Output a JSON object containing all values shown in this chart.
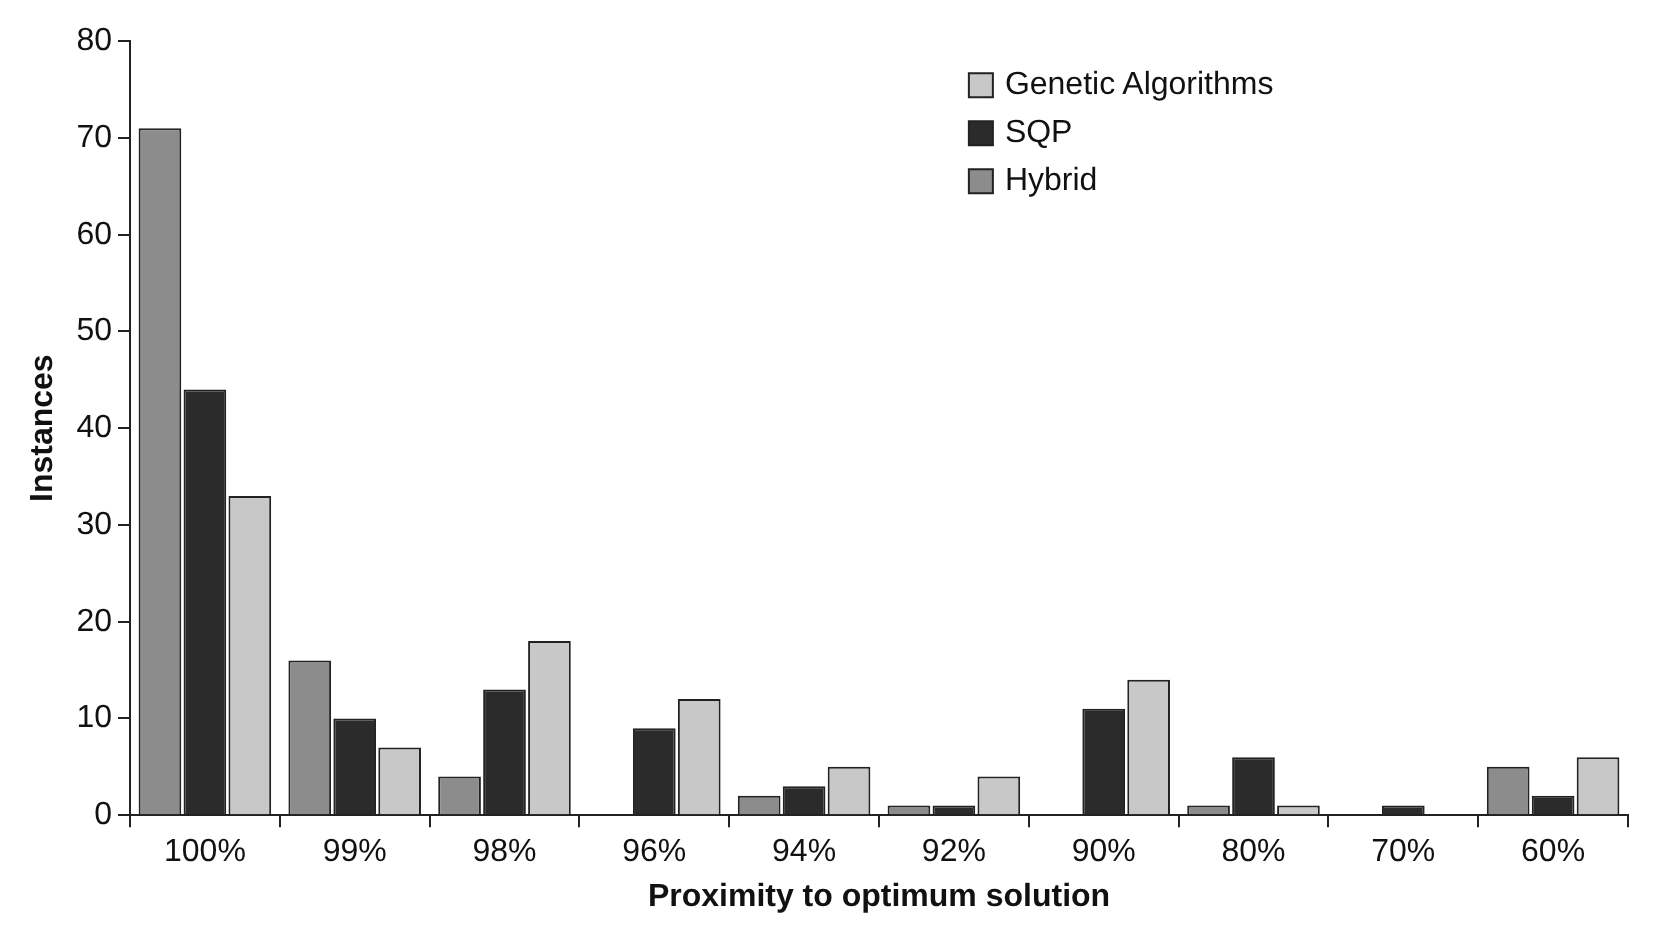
{
  "chart_data": {
    "type": "bar",
    "xlabel": "Proximity to optimum solution",
    "ylabel": "Instances",
    "categories": [
      "100%",
      "99%",
      "98%",
      "96%",
      "94%",
      "92%",
      "90%",
      "80%",
      "70%",
      "60%"
    ],
    "series": [
      {
        "name": "Hybrid",
        "color": "#8c8c8c",
        "values": [
          71,
          16,
          4,
          0,
          2,
          1,
          0,
          1,
          0,
          5
        ]
      },
      {
        "name": "SQP",
        "color": "#2b2b2b",
        "values": [
          44,
          10,
          13,
          9,
          3,
          1,
          11,
          6,
          1,
          2
        ]
      },
      {
        "name": "Genetic Algorithms",
        "color": "#c8c8c8",
        "values": [
          33,
          7,
          18,
          12,
          5,
          4,
          14,
          1,
          0,
          6
        ]
      }
    ],
    "ylim": [
      0,
      80
    ],
    "yticks": [
      0,
      10,
      20,
      30,
      40,
      50,
      60,
      70,
      80
    ],
    "grid": false,
    "legend": "top right"
  }
}
